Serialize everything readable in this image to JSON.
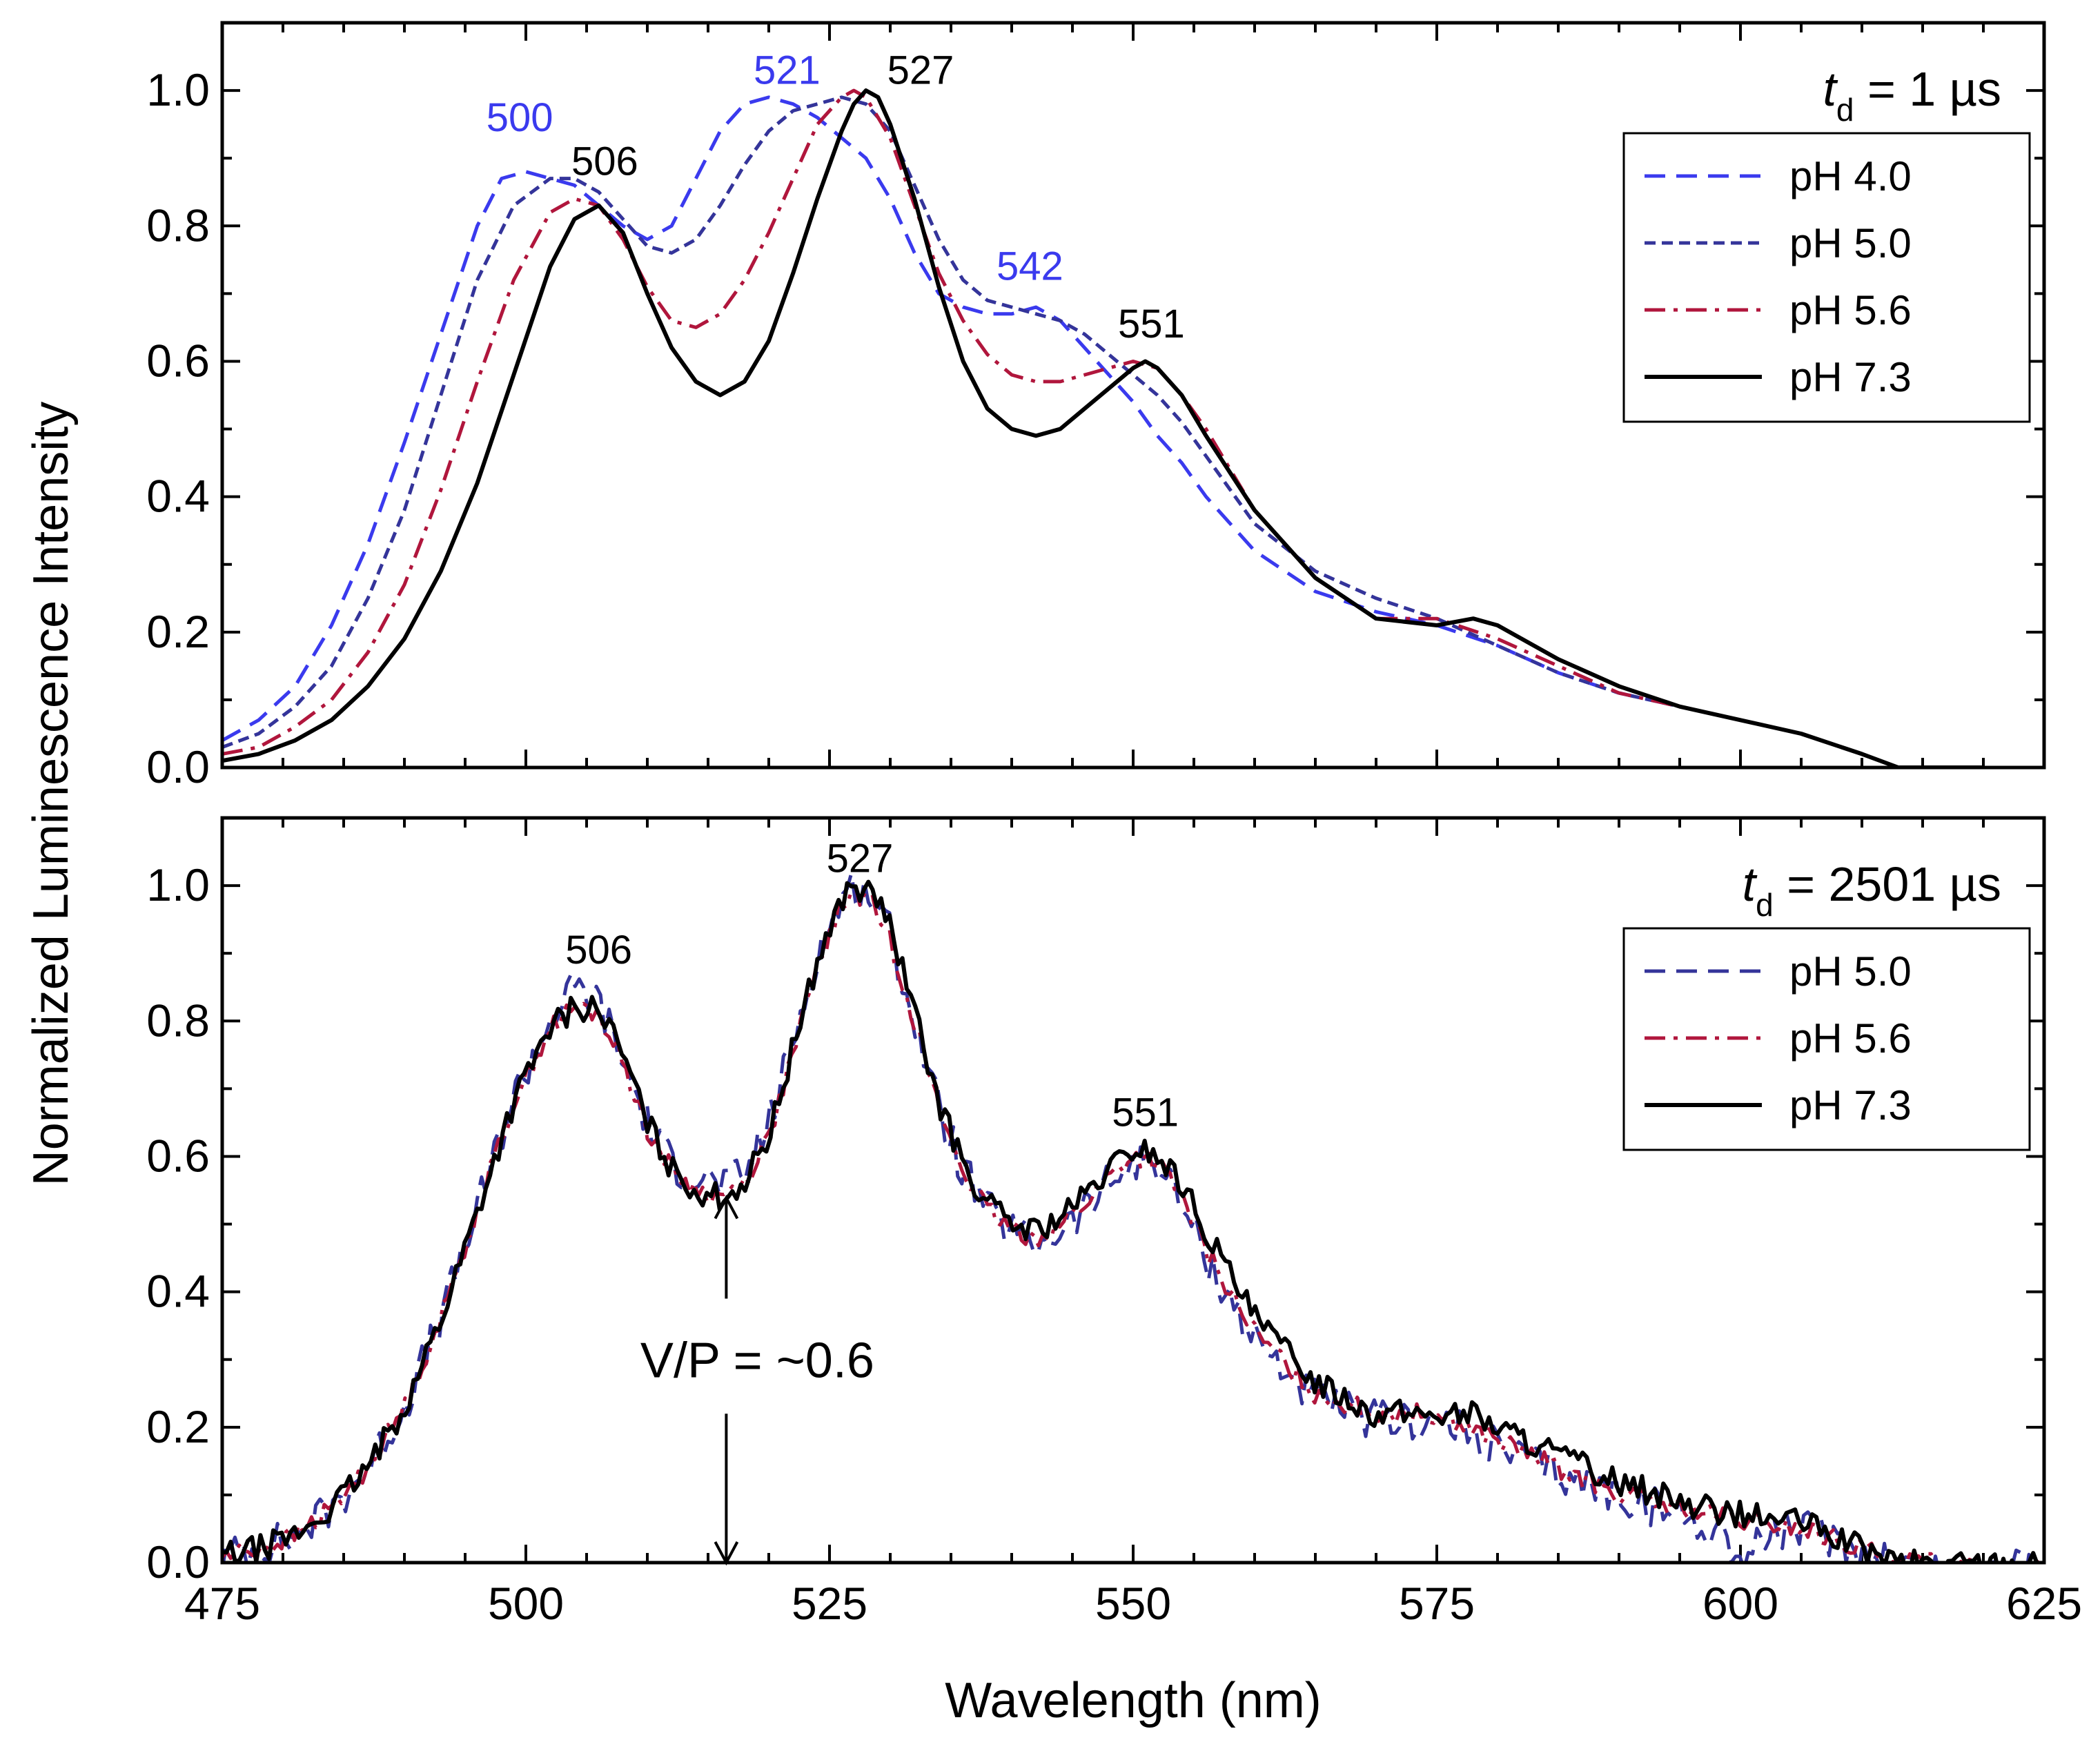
{
  "chart_data": {
    "xlabel": "Wavelength (nm)",
    "ylabel": "Normalized Luminescence Intensity",
    "xlim": [
      475,
      625
    ],
    "ylim": [
      0,
      1.1
    ],
    "xticks": [
      "475",
      "500",
      "525",
      "550",
      "575",
      "600",
      "625"
    ],
    "yticks": [
      "0.0",
      "0.2",
      "0.4",
      "0.6",
      "0.8",
      "1.0"
    ],
    "colors": {
      "pH 4.0": "#3a3aee",
      "pH 5.0": "#34349a",
      "pH 5.6": "#b0163c",
      "pH 7.3": "#000000"
    },
    "panels": [
      {
        "type": "line",
        "title_main": "t",
        "title_sub": "d",
        "title_rest": " = 1 µs",
        "legend": [
          "pH 4.0",
          "pH 5.0",
          "pH 5.6",
          "pH 7.3"
        ],
        "annotations": [
          {
            "text": "500",
            "x": 499.5,
            "y": 0.94,
            "color": "#3a3aee"
          },
          {
            "text": "521",
            "x": 521.5,
            "y": 1.01,
            "color": "#3a3aee"
          },
          {
            "text": "542",
            "x": 541.5,
            "y": 0.72,
            "color": "#3a3aee"
          },
          {
            "text": "506",
            "x": 506.5,
            "y": 0.875,
            "color": "#000000"
          },
          {
            "text": "527",
            "x": 532.5,
            "y": 1.01,
            "color": "#000000"
          },
          {
            "text": "551",
            "x": 551.5,
            "y": 0.635,
            "color": "#000000"
          }
        ],
        "series": [
          {
            "name": "pH 4.0",
            "style": "dash",
            "x": [
              475,
              478,
              481,
              484,
              487,
              490,
              493,
              496,
              498,
              500,
              502,
              504,
              506,
              508,
              510,
              512,
              514,
              516,
              518,
              520,
              522,
              524,
              526,
              528,
              530,
              532,
              534,
              536,
              538,
              540,
              542,
              544,
              546,
              548,
              550,
              552,
              554,
              556,
              560,
              565,
              570,
              575,
              580,
              585,
              590,
              595,
              600,
              605,
              610,
              613,
              616,
              620
            ],
            "y": [
              0.04,
              0.07,
              0.12,
              0.21,
              0.33,
              0.48,
              0.64,
              0.8,
              0.87,
              0.88,
              0.87,
              0.86,
              0.83,
              0.8,
              0.78,
              0.8,
              0.87,
              0.94,
              0.98,
              0.99,
              0.98,
              0.96,
              0.93,
              0.9,
              0.84,
              0.76,
              0.7,
              0.68,
              0.67,
              0.67,
              0.68,
              0.66,
              0.62,
              0.58,
              0.54,
              0.49,
              0.45,
              0.4,
              0.32,
              0.26,
              0.23,
              0.21,
              0.18,
              0.14,
              0.11,
              0.09,
              0.07,
              0.05,
              0.02,
              0.0,
              0.0,
              0.0
            ]
          },
          {
            "name": "pH 5.0",
            "style": "shortdash",
            "x": [
              475,
              478,
              481,
              484,
              487,
              490,
              493,
              496,
              499,
              502,
              504,
              506,
              508,
              510,
              512,
              514,
              516,
              518,
              520,
              522,
              524,
              526,
              528,
              530,
              532,
              534,
              536,
              538,
              540,
              542,
              544,
              546,
              548,
              550,
              552,
              554,
              556,
              560,
              565,
              570,
              575,
              580,
              585,
              590,
              595,
              600,
              605,
              610,
              613,
              616,
              620
            ],
            "y": [
              0.03,
              0.05,
              0.09,
              0.15,
              0.25,
              0.38,
              0.55,
              0.72,
              0.83,
              0.87,
              0.87,
              0.85,
              0.81,
              0.77,
              0.76,
              0.78,
              0.83,
              0.89,
              0.94,
              0.97,
              0.98,
              0.99,
              0.98,
              0.94,
              0.86,
              0.78,
              0.72,
              0.69,
              0.68,
              0.67,
              0.66,
              0.64,
              0.61,
              0.58,
              0.55,
              0.51,
              0.46,
              0.36,
              0.29,
              0.25,
              0.22,
              0.18,
              0.14,
              0.11,
              0.09,
              0.07,
              0.05,
              0.02,
              0.0,
              0.0,
              0.0
            ]
          },
          {
            "name": "pH 5.6",
            "style": "dashdot",
            "x": [
              475,
              478,
              481,
              484,
              487,
              490,
              493,
              496,
              499,
              502,
              504,
              506,
              508,
              510,
              512,
              514,
              516,
              518,
              520,
              522,
              524,
              526,
              527,
              528,
              530,
              532,
              534,
              536,
              538,
              540,
              542,
              544,
              546,
              548,
              550,
              552,
              554,
              556,
              560,
              565,
              570,
              575,
              580,
              585,
              590,
              595,
              600,
              605,
              610,
              613,
              616,
              620
            ],
            "y": [
              0.02,
              0.03,
              0.06,
              0.1,
              0.17,
              0.27,
              0.41,
              0.57,
              0.72,
              0.82,
              0.84,
              0.83,
              0.78,
              0.71,
              0.66,
              0.65,
              0.67,
              0.72,
              0.79,
              0.87,
              0.95,
              0.99,
              1.0,
              0.99,
              0.93,
              0.83,
              0.73,
              0.66,
              0.61,
              0.58,
              0.57,
              0.57,
              0.58,
              0.59,
              0.6,
              0.59,
              0.55,
              0.5,
              0.38,
              0.28,
              0.22,
              0.22,
              0.19,
              0.15,
              0.11,
              0.09,
              0.07,
              0.05,
              0.02,
              0.0,
              0.0,
              0.0
            ]
          },
          {
            "name": "pH 7.3",
            "style": "solid",
            "x": [
              475,
              478,
              481,
              484,
              487,
              490,
              493,
              496,
              499,
              502,
              504,
              506,
              508,
              510,
              512,
              514,
              516,
              518,
              520,
              522,
              524,
              526,
              527,
              528,
              529,
              530,
              532,
              534,
              536,
              538,
              540,
              542,
              544,
              546,
              548,
              550,
              551,
              552,
              554,
              556,
              560,
              565,
              570,
              575,
              578,
              580,
              585,
              590,
              595,
              600,
              605,
              610,
              613,
              616,
              620
            ],
            "y": [
              0.01,
              0.02,
              0.04,
              0.07,
              0.12,
              0.19,
              0.29,
              0.42,
              0.58,
              0.74,
              0.81,
              0.83,
              0.79,
              0.7,
              0.62,
              0.57,
              0.55,
              0.57,
              0.63,
              0.73,
              0.84,
              0.94,
              0.98,
              1.0,
              0.99,
              0.95,
              0.84,
              0.71,
              0.6,
              0.53,
              0.5,
              0.49,
              0.5,
              0.53,
              0.56,
              0.59,
              0.6,
              0.59,
              0.55,
              0.49,
              0.38,
              0.28,
              0.22,
              0.21,
              0.22,
              0.21,
              0.16,
              0.12,
              0.09,
              0.07,
              0.05,
              0.02,
              0.0,
              0.0,
              0.0
            ]
          }
        ]
      },
      {
        "type": "line",
        "title_main": "t",
        "title_sub": "d",
        "title_rest": " = 2501 µs",
        "legend": [
          "pH 5.0",
          "pH 5.6",
          "pH 7.3"
        ],
        "annotations": [
          {
            "text": "506",
            "x": 506,
            "y": 0.885,
            "color": "#000000"
          },
          {
            "text": "527",
            "x": 527.5,
            "y": 1.02,
            "color": "#000000"
          },
          {
            "text": "551",
            "x": 551,
            "y": 0.645,
            "color": "#000000"
          }
        ],
        "vp_label": "V/P = ~0.6",
        "vp_x": 516.5,
        "series": [
          {
            "name": "pH 5.0",
            "style": "dash",
            "noise": 0.03,
            "x": [
              475,
              478,
              481,
              484,
              487,
              490,
              493,
              496,
              499,
              502,
              504,
              506,
              508,
              510,
              512,
              514,
              516,
              518,
              520,
              522,
              524,
              526,
              527,
              528,
              529,
              530,
              532,
              534,
              536,
              538,
              540,
              542,
              544,
              546,
              548,
              550,
              552,
              554,
              556,
              560,
              565,
              570,
              575,
              580,
              585,
              590,
              595,
              599,
              600,
              602,
              605,
              610,
              613,
              616,
              620,
              625
            ],
            "y": [
              0.01,
              0.02,
              0.04,
              0.08,
              0.14,
              0.23,
              0.36,
              0.52,
              0.69,
              0.8,
              0.85,
              0.83,
              0.74,
              0.65,
              0.59,
              0.57,
              0.56,
              0.57,
              0.65,
              0.77,
              0.9,
              0.98,
              1.0,
              0.99,
              0.97,
              0.93,
              0.8,
              0.67,
              0.58,
              0.52,
              0.49,
              0.47,
              0.49,
              0.52,
              0.56,
              0.59,
              0.59,
              0.53,
              0.45,
              0.33,
              0.24,
              0.21,
              0.21,
              0.17,
              0.13,
              0.1,
              0.07,
              0.04,
              0.0,
              0.04,
              0.05,
              0.02,
              0.0,
              -0.01,
              -0.01,
              -0.01
            ]
          },
          {
            "name": "pH 5.6",
            "style": "dashdot",
            "noise": 0.015,
            "x": [
              475,
              478,
              481,
              484,
              487,
              490,
              493,
              496,
              499,
              502,
              504,
              506,
              508,
              510,
              512,
              514,
              516,
              518,
              520,
              522,
              524,
              526,
              527,
              528,
              529,
              530,
              532,
              534,
              536,
              538,
              540,
              542,
              544,
              546,
              548,
              550,
              552,
              554,
              556,
              560,
              565,
              570,
              575,
              580,
              585,
              590,
              595,
              600,
              605,
              610,
              613,
              616,
              620,
              625
            ],
            "y": [
              0.01,
              0.02,
              0.04,
              0.08,
              0.14,
              0.23,
              0.36,
              0.52,
              0.68,
              0.79,
              0.82,
              0.81,
              0.74,
              0.64,
              0.58,
              0.55,
              0.54,
              0.56,
              0.63,
              0.75,
              0.88,
              0.97,
              0.99,
              0.98,
              0.96,
              0.92,
              0.8,
              0.67,
              0.58,
              0.52,
              0.49,
              0.48,
              0.5,
              0.53,
              0.57,
              0.6,
              0.59,
              0.54,
              0.46,
              0.34,
              0.25,
              0.22,
              0.22,
              0.18,
              0.14,
              0.1,
              0.08,
              0.06,
              0.05,
              0.02,
              0.0,
              0.0,
              -0.01,
              -0.01
            ]
          },
          {
            "name": "pH 7.3",
            "style": "solid",
            "noise": 0.02,
            "x": [
              475,
              478,
              481,
              484,
              487,
              490,
              493,
              496,
              499,
              502,
              504,
              506,
              508,
              510,
              512,
              514,
              516,
              518,
              520,
              522,
              524,
              526,
              527,
              528,
              529,
              530,
              532,
              534,
              536,
              538,
              540,
              542,
              544,
              546,
              548,
              550,
              551,
              552,
              554,
              556,
              560,
              565,
              570,
              575,
              578,
              580,
              585,
              590,
              595,
              600,
              605,
              610,
              613,
              616,
              620,
              625
            ],
            "y": [
              0.01,
              0.02,
              0.04,
              0.08,
              0.14,
              0.23,
              0.36,
              0.52,
              0.68,
              0.79,
              0.82,
              0.82,
              0.75,
              0.65,
              0.58,
              0.55,
              0.54,
              0.56,
              0.63,
              0.76,
              0.89,
              0.98,
              1.0,
              0.99,
              0.98,
              0.94,
              0.81,
              0.68,
              0.59,
              0.53,
              0.5,
              0.49,
              0.51,
              0.54,
              0.58,
              0.61,
              0.61,
              0.6,
              0.56,
              0.49,
              0.36,
              0.27,
              0.22,
              0.22,
              0.22,
              0.2,
              0.16,
              0.12,
              0.09,
              0.07,
              0.06,
              0.02,
              0.0,
              0.0,
              0.0,
              0.0
            ]
          }
        ]
      }
    ]
  }
}
